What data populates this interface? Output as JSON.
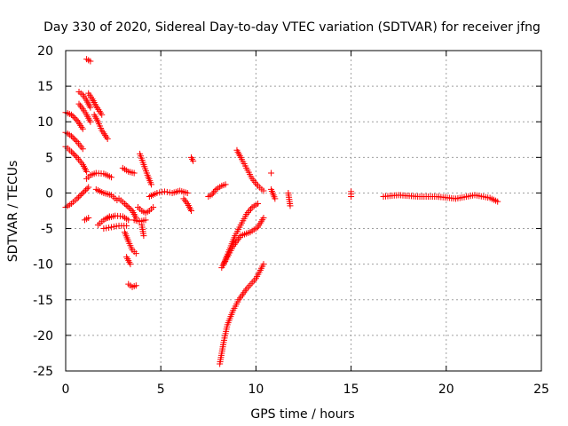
{
  "chart_data": {
    "type": "scatter",
    "title": "Day 330 of 2020, Sidereal Day-to-day VTEC variation (SDTVAR) for receiver jfng",
    "xlabel": "GPS time / hours",
    "ylabel": "SDTVAR / TECUs",
    "xlim": [
      0,
      25
    ],
    "ylim": [
      -25,
      20
    ],
    "x_ticks": [
      0,
      5,
      10,
      15,
      20,
      25
    ],
    "y_ticks": [
      -25,
      -20,
      -15,
      -10,
      -5,
      0,
      5,
      10,
      15,
      20
    ],
    "grid": true,
    "marker": "+",
    "color": "#ff0000",
    "segments": [
      {
        "x": [
          0.0,
          0.3,
          0.6,
          0.9
        ],
        "y": [
          11.3,
          11.0,
          10.2,
          9.0
        ]
      },
      {
        "x": [
          0.0,
          0.3,
          0.6,
          0.9
        ],
        "y": [
          8.5,
          8.0,
          7.2,
          6.2
        ]
      },
      {
        "x": [
          0.0,
          0.3,
          0.6,
          0.9,
          1.1
        ],
        "y": [
          6.5,
          5.8,
          5.0,
          4.0,
          3.0
        ]
      },
      {
        "x": [
          0.0,
          0.3,
          0.6,
          0.9,
          1.2
        ],
        "y": [
          -2.0,
          -1.5,
          -0.8,
          0.0,
          0.8
        ]
      },
      {
        "x": [
          0.7,
          0.9,
          1.1,
          1.3
        ],
        "y": [
          14.2,
          13.8,
          13.0,
          12.0
        ]
      },
      {
        "x": [
          0.7,
          0.9,
          1.1,
          1.3
        ],
        "y": [
          12.5,
          11.8,
          11.0,
          10.0
        ]
      },
      {
        "x": [
          1.1,
          1.3
        ],
        "y": [
          18.8,
          18.5
        ]
      },
      {
        "x": [
          1.2,
          1.4,
          1.6,
          1.9
        ],
        "y": [
          14.0,
          13.2,
          12.2,
          11.0
        ]
      },
      {
        "x": [
          1.5,
          1.7,
          1.9,
          2.2
        ],
        "y": [
          11.0,
          10.0,
          8.8,
          7.6
        ]
      },
      {
        "x": [
          1.1,
          1.3,
          1.6,
          2.0,
          2.4
        ],
        "y": [
          2.0,
          2.5,
          2.8,
          2.7,
          2.2
        ]
      },
      {
        "x": [
          1.6,
          2.0,
          2.4,
          2.7
        ],
        "y": [
          0.5,
          0.0,
          -0.3,
          -1.0
        ]
      },
      {
        "x": [
          1.0,
          1.2
        ],
        "y": [
          -3.8,
          -3.5
        ]
      },
      {
        "x": [
          1.7,
          2.0,
          2.3
        ],
        "y": [
          -4.5,
          -3.8,
          -3.3
        ]
      },
      {
        "x": [
          2.0,
          2.4,
          2.8,
          3.2
        ],
        "y": [
          -5.0,
          -4.8,
          -4.6,
          -4.6
        ]
      },
      {
        "x": [
          2.2,
          2.6,
          3.0,
          3.3
        ],
        "y": [
          -3.5,
          -3.2,
          -3.3,
          -3.8
        ]
      },
      {
        "x": [
          2.8,
          3.1,
          3.5,
          3.7
        ],
        "y": [
          -0.8,
          -1.5,
          -2.5,
          -3.5
        ]
      },
      {
        "x": [
          3.0,
          3.3,
          3.6
        ],
        "y": [
          3.5,
          3.0,
          2.8
        ]
      },
      {
        "x": [
          3.1,
          3.3,
          3.5,
          3.7
        ],
        "y": [
          -5.5,
          -6.8,
          -8.0,
          -8.5
        ]
      },
      {
        "x": [
          3.2,
          3.4
        ],
        "y": [
          -9.0,
          -10.0
        ]
      },
      {
        "x": [
          3.3,
          3.5,
          3.7
        ],
        "y": [
          -12.8,
          -13.2,
          -13.0
        ]
      },
      {
        "x": [
          3.9,
          4.1,
          4.3,
          4.5
        ],
        "y": [
          5.5,
          4.0,
          2.5,
          1.2
        ]
      },
      {
        "x": [
          3.6,
          3.9,
          4.2
        ],
        "y": [
          -3.8,
          -4.0,
          -3.8
        ]
      },
      {
        "x": [
          3.8,
          4.0,
          4.2,
          4.4,
          4.6
        ],
        "y": [
          -2.0,
          -2.5,
          -2.8,
          -2.5,
          -2.0
        ]
      },
      {
        "x": [
          4.0,
          4.1
        ],
        "y": [
          -4.5,
          -6.0
        ]
      },
      {
        "x": [
          4.4,
          4.8,
          5.2,
          5.6,
          6.0,
          6.4
        ],
        "y": [
          -0.5,
          0.0,
          0.2,
          0.0,
          0.3,
          0.0
        ]
      },
      {
        "x": [
          6.2,
          6.4,
          6.6
        ],
        "y": [
          -0.8,
          -1.5,
          -2.5
        ]
      },
      {
        "x": [
          6.6,
          6.7
        ],
        "y": [
          5.0,
          4.5
        ]
      },
      {
        "x": [
          7.5,
          7.7,
          7.9,
          8.2,
          8.4
        ],
        "y": [
          -0.5,
          -0.2,
          0.5,
          1.0,
          1.2
        ]
      },
      {
        "x": [
          9.0,
          9.2,
          9.5,
          9.8,
          10.1,
          10.4
        ],
        "y": [
          6.0,
          5.0,
          3.5,
          2.0,
          1.0,
          0.3
        ]
      },
      {
        "x": [
          10.8
        ],
        "y": [
          2.8
        ]
      },
      {
        "x": [
          10.8,
          11.0
        ],
        "y": [
          0.5,
          -0.8
        ]
      },
      {
        "x": [
          8.2,
          8.5,
          8.8,
          9.2,
          9.7,
          10.1,
          10.4
        ],
        "y": [
          -10.5,
          -9.0,
          -7.5,
          -6.0,
          -5.5,
          -4.8,
          -3.5
        ]
      },
      {
        "x": [
          8.3,
          8.6,
          8.9,
          9.2,
          9.5,
          9.8,
          10.1
        ],
        "y": [
          -10.0,
          -8.0,
          -6.0,
          -4.5,
          -3.0,
          -2.0,
          -1.5
        ]
      },
      {
        "x": [
          8.1,
          8.3,
          8.5,
          8.8,
          9.1,
          9.5,
          10.0,
          10.4
        ],
        "y": [
          -24.0,
          -21.0,
          -18.5,
          -16.5,
          -15.0,
          -13.5,
          -12.0,
          -10.0
        ]
      },
      {
        "x": [
          11.7,
          11.8
        ],
        "y": [
          0.0,
          -1.8
        ]
      },
      {
        "x": [
          15.0,
          15.0
        ],
        "y": [
          0.2,
          -0.5
        ]
      },
      {
        "x": [
          16.7,
          17.5,
          18.5,
          19.5,
          20.5,
          21.5,
          22.3,
          22.7
        ],
        "y": [
          -0.5,
          -0.3,
          -0.5,
          -0.5,
          -0.8,
          -0.3,
          -0.7,
          -1.2
        ]
      }
    ]
  }
}
